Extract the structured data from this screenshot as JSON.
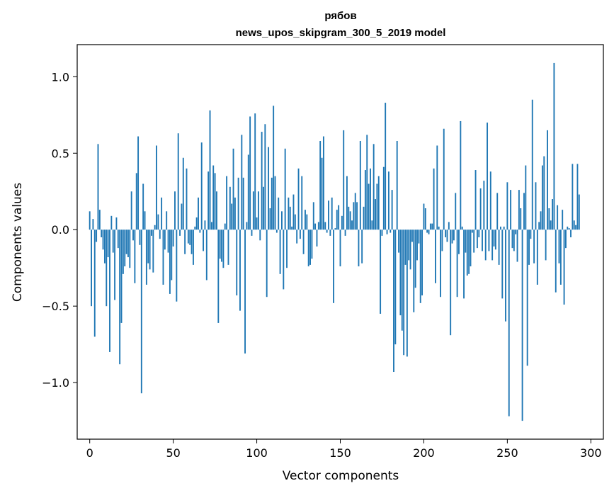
{
  "chart_data": {
    "type": "bar",
    "title": "рябов",
    "subtitle": "news_upos_skipgram_300_5_2019 model",
    "xlabel": "Vector components",
    "ylabel": "Components values",
    "xlim": [
      -7.5,
      307.5
    ],
    "ylim": [
      -1.37,
      1.21
    ],
    "xticks": [
      0,
      50,
      100,
      150,
      200,
      250,
      300
    ],
    "yticks": [
      -1.0,
      -0.5,
      0.0,
      0.5,
      1.0
    ],
    "ytick_labels": [
      "−1.0",
      "−0.5",
      "0.0",
      "0.5",
      "1.0"
    ],
    "bar_color": "#1f77b4",
    "values": [
      0.12,
      -0.5,
      0.07,
      -0.7,
      -0.08,
      0.56,
      0.13,
      -0.05,
      -0.13,
      -0.22,
      -0.5,
      -0.18,
      -0.8,
      0.09,
      -0.15,
      -0.46,
      0.08,
      -0.12,
      -0.88,
      -0.61,
      -0.29,
      -0.24,
      -0.16,
      -0.18,
      -0.25,
      0.25,
      -0.07,
      -0.35,
      0.37,
      0.61,
      -0.1,
      -1.07,
      0.3,
      0.12,
      -0.36,
      -0.22,
      -0.26,
      -0.04,
      -0.28,
      0.03,
      0.55,
      0.1,
      -0.06,
      0.21,
      -0.36,
      -0.13,
      0.12,
      -0.15,
      -0.42,
      -0.33,
      -0.11,
      0.25,
      -0.47,
      0.63,
      -0.04,
      0.17,
      0.47,
      -0.16,
      0.4,
      -0.09,
      -0.1,
      -0.16,
      -0.23,
      0.02,
      0.08,
      0.21,
      -0.02,
      0.57,
      -0.14,
      0.06,
      -0.33,
      0.38,
      0.78,
      0.05,
      0.42,
      0.37,
      0.25,
      -0.61,
      -0.19,
      -0.21,
      -0.25,
      0.04,
      0.35,
      -0.23,
      0.28,
      0.17,
      0.53,
      0.21,
      -0.43,
      0.34,
      -0.53,
      0.62,
      0.34,
      -0.81,
      0.05,
      0.49,
      0.74,
      -0.04,
      0.25,
      0.76,
      0.08,
      0.25,
      -0.07,
      0.64,
      0.28,
      0.69,
      -0.44,
      0.54,
      0.14,
      0.34,
      0.81,
      0.35,
      -0.02,
      0.21,
      -0.29,
      0.12,
      -0.39,
      0.53,
      -0.25,
      0.21,
      0.15,
      0.02,
      0.23,
      0.1,
      -0.09,
      0.4,
      -0.06,
      0.35,
      -0.16,
      0.13,
      0.1,
      -0.24,
      -0.23,
      -0.19,
      0.18,
      0.04,
      -0.11,
      0.05,
      0.58,
      0.47,
      0.61,
      0.05,
      -0.02,
      0.19,
      -0.04,
      0.21,
      -0.48,
      0.01,
      0.13,
      0.16,
      -0.24,
      0.09,
      0.65,
      -0.04,
      0.35,
      0.15,
      0.12,
      0.06,
      0.18,
      0.24,
      0.18,
      -0.24,
      0.58,
      -0.22,
      0.15,
      0.39,
      0.62,
      0.3,
      0.4,
      0.06,
      0.56,
      0.2,
      0.3,
      0.35,
      -0.55,
      -0.04,
      0.41,
      0.83,
      -0.03,
      0.38,
      -0.02,
      0.26,
      -0.93,
      -0.75,
      0.58,
      -0.15,
      -0.56,
      -0.66,
      -0.82,
      -0.23,
      -0.83,
      -0.2,
      -0.26,
      -0.08,
      -0.54,
      -0.38,
      -0.2,
      -0.09,
      -0.48,
      -0.43,
      0.17,
      0.14,
      -0.02,
      -0.03,
      0.04,
      0.04,
      0.4,
      -0.35,
      0.55,
      0.02,
      -0.44,
      -0.14,
      0.66,
      -0.05,
      -0.08,
      0.05,
      -0.69,
      -0.09,
      -0.07,
      0.24,
      -0.44,
      -0.16,
      0.71,
      0.02,
      -0.45,
      -0.15,
      -0.3,
      -0.29,
      -0.24,
      -0.02,
      -0.15,
      0.39,
      -0.12,
      -0.05,
      0.27,
      -0.14,
      0.32,
      -0.2,
      0.7,
      -0.14,
      0.38,
      -0.2,
      -0.11,
      -0.13,
      0.24,
      -0.23,
      0.02,
      -0.45,
      0.02,
      -0.6,
      0.31,
      -1.22,
      0.26,
      -0.12,
      -0.14,
      -0.03,
      -0.21,
      0.26,
      0.14,
      -1.25,
      0.24,
      0.42,
      -0.89,
      -0.23,
      -0.06,
      0.85,
      -0.22,
      0.31,
      -0.36,
      0.05,
      0.12,
      0.42,
      0.48,
      -0.2,
      0.65,
      0.14,
      0.06,
      0.2,
      1.09,
      -0.41,
      0.16,
      -0.22,
      -0.36,
      0.13,
      -0.49,
      -0.12,
      0.02,
      0.01,
      -0.05,
      0.43,
      0.06,
      0.03,
      0.43,
      0.23
    ]
  }
}
